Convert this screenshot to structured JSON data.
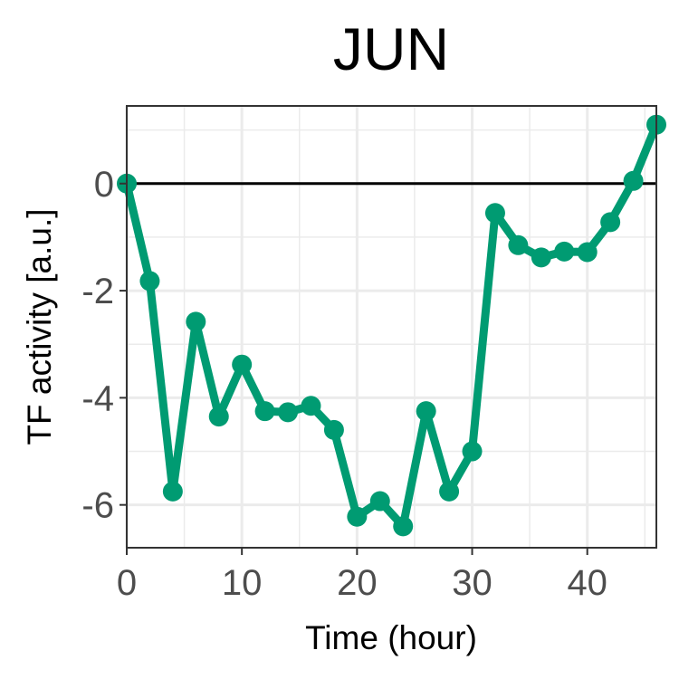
{
  "chart_data": {
    "type": "line",
    "title": "JUN",
    "xlabel": "Time (hour)",
    "ylabel": "TF activity [a.u.]",
    "xlim": [
      0,
      46
    ],
    "ylim": [
      -6.8,
      1.45
    ],
    "xticks": [
      0,
      10,
      20,
      30,
      40
    ],
    "yticks": [
      0,
      -2,
      -4,
      -6
    ],
    "grid": true,
    "reference_line_y": 0,
    "colors": {
      "series": "#009b72",
      "reference": "#000000",
      "grid": "#ebebeb",
      "panel_border": "#333333"
    },
    "series": [
      {
        "x": [
          0,
          2,
          4,
          6,
          8,
          10,
          12,
          14,
          16,
          18,
          20,
          22,
          24,
          26,
          28,
          30,
          32,
          34,
          36,
          38,
          40,
          42,
          44,
          46
        ],
        "values": [
          0,
          -1.82,
          -5.75,
          -2.58,
          -4.35,
          -3.38,
          -4.25,
          -4.27,
          -4.15,
          -4.6,
          -6.22,
          -5.93,
          -6.4,
          -4.25,
          -5.75,
          -5.0,
          -0.55,
          -1.15,
          -1.38,
          -1.27,
          -1.28,
          -0.72,
          0.05,
          1.1
        ]
      }
    ]
  }
}
